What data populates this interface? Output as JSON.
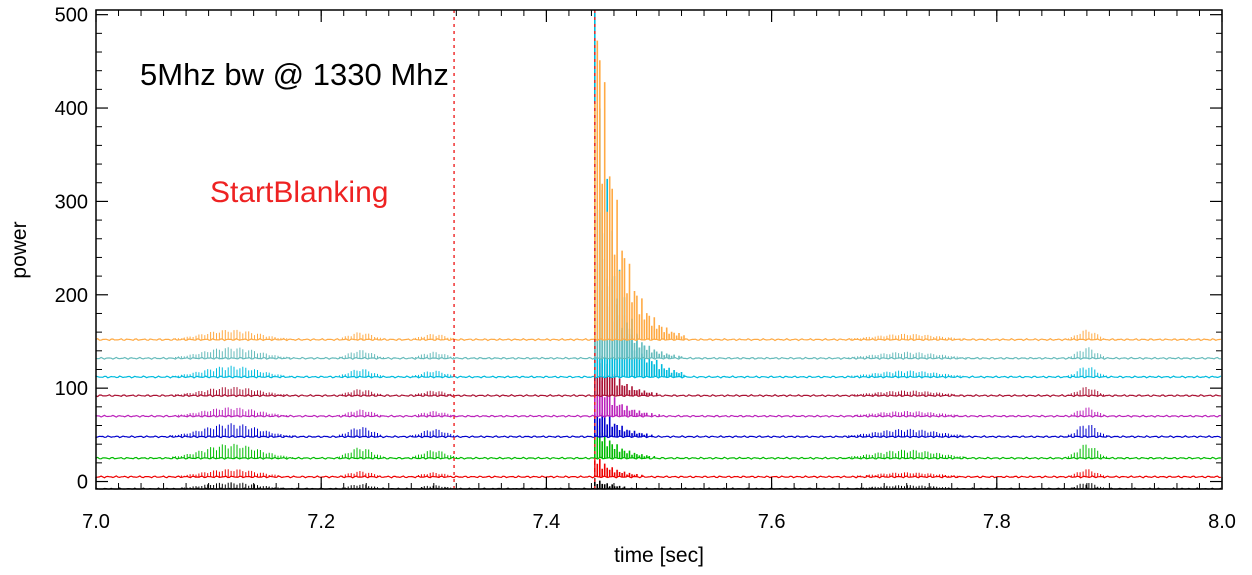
{
  "chart_data": {
    "type": "line",
    "title": "",
    "xlabel": "time [sec]",
    "ylabel": "power",
    "xlim": [
      7.0,
      8.0
    ],
    "ylim": [
      -8,
      505
    ],
    "xticks": [
      "7.0",
      "7.2",
      "7.4",
      "7.6",
      "7.8",
      "8.0"
    ],
    "xtick_values": [
      7.0,
      7.2,
      7.4,
      7.6,
      7.8,
      8.0
    ],
    "yticks": [
      "0",
      "100",
      "200",
      "300",
      "400",
      "500"
    ],
    "ytick_values": [
      0,
      100,
      200,
      300,
      400,
      500
    ],
    "grid": false,
    "legend": "none",
    "annotations": {
      "title_text": "5Mhz bw @ 1330 Mhz",
      "marker_text": "StartBlanking",
      "marker_color": "#ee2222",
      "marker_x": 7.318,
      "marker2_x": 7.443
    },
    "pulse_start": 7.443,
    "series": [
      {
        "color": "#000000",
        "baseline": -8,
        "peak": 12,
        "hump_gain": 0.6
      },
      {
        "color": "#ee0000",
        "baseline": 5,
        "peak": 25,
        "hump_gain": 0.7
      },
      {
        "color": "#00bb00",
        "baseline": 25,
        "peak": 45,
        "hump_gain": 1.3
      },
      {
        "color": "#0000cc",
        "baseline": 48,
        "peak": 45,
        "hump_gain": 1.2
      },
      {
        "color": "#bb22bb",
        "baseline": 70,
        "peak": 55,
        "hump_gain": 0.8
      },
      {
        "color": "#aa1133",
        "baseline": 92,
        "peak": 65,
        "hump_gain": 0.8
      },
      {
        "color": "#00bbdd",
        "baseline": 112,
        "peak": 400,
        "hump_gain": 1.0
      },
      {
        "color": "#66bbbb",
        "baseline": 132,
        "peak": 200,
        "hump_gain": 1.0
      },
      {
        "color": "#ffaa44",
        "baseline": 152,
        "peak": 450,
        "hump_gain": 0.9
      }
    ]
  }
}
